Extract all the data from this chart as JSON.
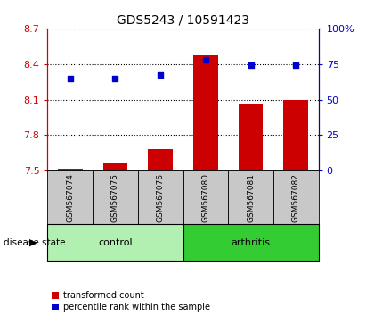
{
  "title": "GDS5243 / 10591423",
  "samples": [
    "GSM567074",
    "GSM567075",
    "GSM567076",
    "GSM567080",
    "GSM567081",
    "GSM567082"
  ],
  "transformed_count": [
    7.52,
    7.56,
    7.68,
    8.47,
    8.06,
    8.1
  ],
  "percentile_rank": [
    65,
    65,
    67,
    78,
    74,
    74
  ],
  "ylim_left": [
    7.5,
    8.7
  ],
  "ylim_right": [
    0,
    100
  ],
  "yticks_left": [
    7.5,
    7.8,
    8.1,
    8.4,
    8.7
  ],
  "ytick_labels_left": [
    "7.5",
    "7.8",
    "8.1",
    "8.4",
    "8.7"
  ],
  "yticks_right": [
    0,
    25,
    50,
    75,
    100
  ],
  "ytick_labels_right": [
    "0",
    "25",
    "50",
    "75",
    "100%"
  ],
  "bar_color": "#cc0000",
  "dot_color": "#0000cc",
  "bar_width": 0.55,
  "groups": [
    {
      "label": "control",
      "indices": [
        0,
        1,
        2
      ],
      "color": "#b2f0b2"
    },
    {
      "label": "arthritis",
      "indices": [
        3,
        4,
        5
      ],
      "color": "#33cc33"
    }
  ],
  "group_row_label": "disease state",
  "legend_bar_label": "transformed count",
  "legend_dot_label": "percentile rank within the sample",
  "sample_box_color": "#c8c8c8",
  "dot_marker_size": 20
}
